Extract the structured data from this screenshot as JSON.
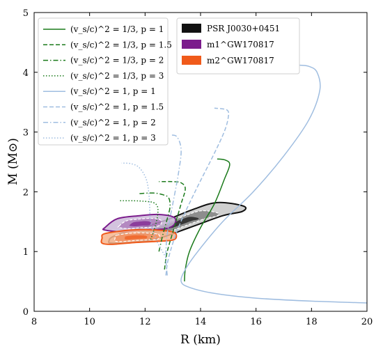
{
  "chart_data": {
    "type": "line",
    "xlabel": "R (km)",
    "ylabel": "M (M⊙)",
    "xlim": [
      8,
      20
    ],
    "ylim": [
      0,
      5
    ],
    "xticks": [
      "8",
      "10",
      "12",
      "14",
      "16",
      "18",
      "20"
    ],
    "yticks": [
      "0",
      "1",
      "2",
      "3",
      "4",
      "5"
    ],
    "grid": false,
    "legend_left": {
      "placement": "top-left",
      "entries": [
        "(v_s/c)^2 = 1/3,  p = 1",
        "(v_s/c)^2 = 1/3,  p = 1.5",
        "(v_s/c)^2 = 1/3,  p = 2",
        "(v_s/c)^2 = 1/3,  p = 3",
        "(v_s/c)^2 = 1,  p = 1",
        "(v_s/c)^2 = 1,  p = 1.5",
        "(v_s/c)^2 = 1,  p = 2",
        "(v_s/c)^2 = 1,  p = 3"
      ]
    },
    "legend_right": {
      "placement": "top-center",
      "entries": [
        {
          "label": "PSR J0030+0451",
          "color": "#111111"
        },
        {
          "label": "m1^GW170817",
          "color": "#7b1c8c"
        },
        {
          "label": "m2^GW170817",
          "color": "#f05a1a"
        }
      ]
    },
    "series": [
      {
        "color": "#1a7a1a",
        "dash": "solid",
        "points": [
          [
            13.42,
            0.5
          ],
          [
            13.45,
            0.7
          ],
          [
            13.6,
            1.0
          ],
          [
            14.0,
            1.4
          ],
          [
            14.5,
            1.8
          ],
          [
            14.85,
            2.2
          ],
          [
            15.05,
            2.45
          ],
          [
            14.9,
            2.53
          ],
          [
            14.6,
            2.55
          ]
        ]
      },
      {
        "color": "#1a7a1a",
        "dash": "dashed",
        "points": [
          [
            12.7,
            0.7
          ],
          [
            12.8,
            1.0
          ],
          [
            13.05,
            1.4
          ],
          [
            13.3,
            1.8
          ],
          [
            13.45,
            2.05
          ],
          [
            13.3,
            2.15
          ],
          [
            13.0,
            2.17
          ],
          [
            12.5,
            2.17
          ]
        ]
      },
      {
        "color": "#1a7a1a",
        "dash": "dashdot",
        "points": [
          [
            12.5,
            1.0
          ],
          [
            12.65,
            1.3
          ],
          [
            12.8,
            1.55
          ],
          [
            12.9,
            1.75
          ],
          [
            12.85,
            1.9
          ],
          [
            12.65,
            1.95
          ],
          [
            12.3,
            1.98
          ],
          [
            11.8,
            1.97
          ]
        ]
      },
      {
        "color": "#1a7a1a",
        "dash": "dotted",
        "points": [
          [
            12.2,
            1.2
          ],
          [
            12.35,
            1.4
          ],
          [
            12.45,
            1.6
          ],
          [
            12.45,
            1.75
          ],
          [
            12.3,
            1.82
          ],
          [
            12.0,
            1.84
          ],
          [
            11.6,
            1.85
          ],
          [
            11.1,
            1.85
          ]
        ]
      },
      {
        "color": "#9fbde0",
        "dash": "solid",
        "points": [
          [
            20.0,
            0.14
          ],
          [
            18.0,
            0.17
          ],
          [
            16.0,
            0.22
          ],
          [
            14.5,
            0.3
          ],
          [
            13.6,
            0.4
          ],
          [
            13.3,
            0.5
          ],
          [
            13.45,
            0.7
          ],
          [
            13.9,
            1.0
          ],
          [
            14.8,
            1.5
          ],
          [
            15.9,
            2.0
          ],
          [
            17.0,
            2.6
          ],
          [
            17.9,
            3.2
          ],
          [
            18.3,
            3.7
          ],
          [
            18.2,
            4.0
          ],
          [
            17.9,
            4.1
          ],
          [
            17.5,
            4.12
          ]
        ]
      },
      {
        "color": "#9fbde0",
        "dash": "dashed",
        "points": [
          [
            12.75,
            0.6
          ],
          [
            12.85,
            0.9
          ],
          [
            13.2,
            1.4
          ],
          [
            13.8,
            2.0
          ],
          [
            14.45,
            2.6
          ],
          [
            14.85,
            3.0
          ],
          [
            15.0,
            3.25
          ],
          [
            14.95,
            3.37
          ],
          [
            14.5,
            3.4
          ]
        ]
      },
      {
        "color": "#9fbde0",
        "dash": "dashdot",
        "points": [
          [
            12.8,
            0.6
          ],
          [
            12.75,
            0.9
          ],
          [
            12.8,
            1.3
          ],
          [
            13.0,
            1.8
          ],
          [
            13.2,
            2.3
          ],
          [
            13.3,
            2.7
          ],
          [
            13.15,
            2.92
          ],
          [
            12.9,
            2.95
          ]
        ]
      },
      {
        "color": "#9fbde0",
        "dash": "dotted",
        "points": [
          [
            12.75,
            0.9
          ],
          [
            12.4,
            1.2
          ],
          [
            12.2,
            1.5
          ],
          [
            12.15,
            1.9
          ],
          [
            12.05,
            2.2
          ],
          [
            11.8,
            2.4
          ],
          [
            11.5,
            2.47
          ],
          [
            11.15,
            2.48
          ]
        ]
      }
    ],
    "regions": [
      {
        "name": "PSR J0030+0451",
        "color": "#111111",
        "fill": "#c8c8c8",
        "outline": [
          [
            10.9,
            1.14
          ],
          [
            12.3,
            1.2
          ],
          [
            13.6,
            1.4
          ],
          [
            14.8,
            1.6
          ],
          [
            15.5,
            1.67
          ],
          [
            15.55,
            1.76
          ],
          [
            14.6,
            1.82
          ],
          [
            13.7,
            1.7
          ],
          [
            12.6,
            1.5
          ],
          [
            11.0,
            1.28
          ],
          [
            10.7,
            1.18
          ]
        ]
      },
      {
        "name": "m1^GW170817",
        "color": "#7b1c8c",
        "fill": "#cbb8d8",
        "outline": [
          [
            10.55,
            1.4
          ],
          [
            11.0,
            1.55
          ],
          [
            11.8,
            1.6
          ],
          [
            12.5,
            1.62
          ],
          [
            13.05,
            1.57
          ],
          [
            13.05,
            1.45
          ],
          [
            12.7,
            1.38
          ],
          [
            11.9,
            1.36
          ],
          [
            11.2,
            1.33
          ],
          [
            10.55,
            1.36
          ]
        ]
      },
      {
        "name": "m2^GW170817",
        "color": "#f05a1a",
        "fill": "#f7b48c",
        "outline": [
          [
            10.55,
            1.3
          ],
          [
            11.5,
            1.36
          ],
          [
            12.4,
            1.36
          ],
          [
            13.05,
            1.32
          ],
          [
            13.05,
            1.2
          ],
          [
            12.4,
            1.17
          ],
          [
            11.6,
            1.15
          ],
          [
            10.8,
            1.12
          ],
          [
            10.45,
            1.14
          ],
          [
            10.45,
            1.22
          ]
        ]
      }
    ]
  }
}
